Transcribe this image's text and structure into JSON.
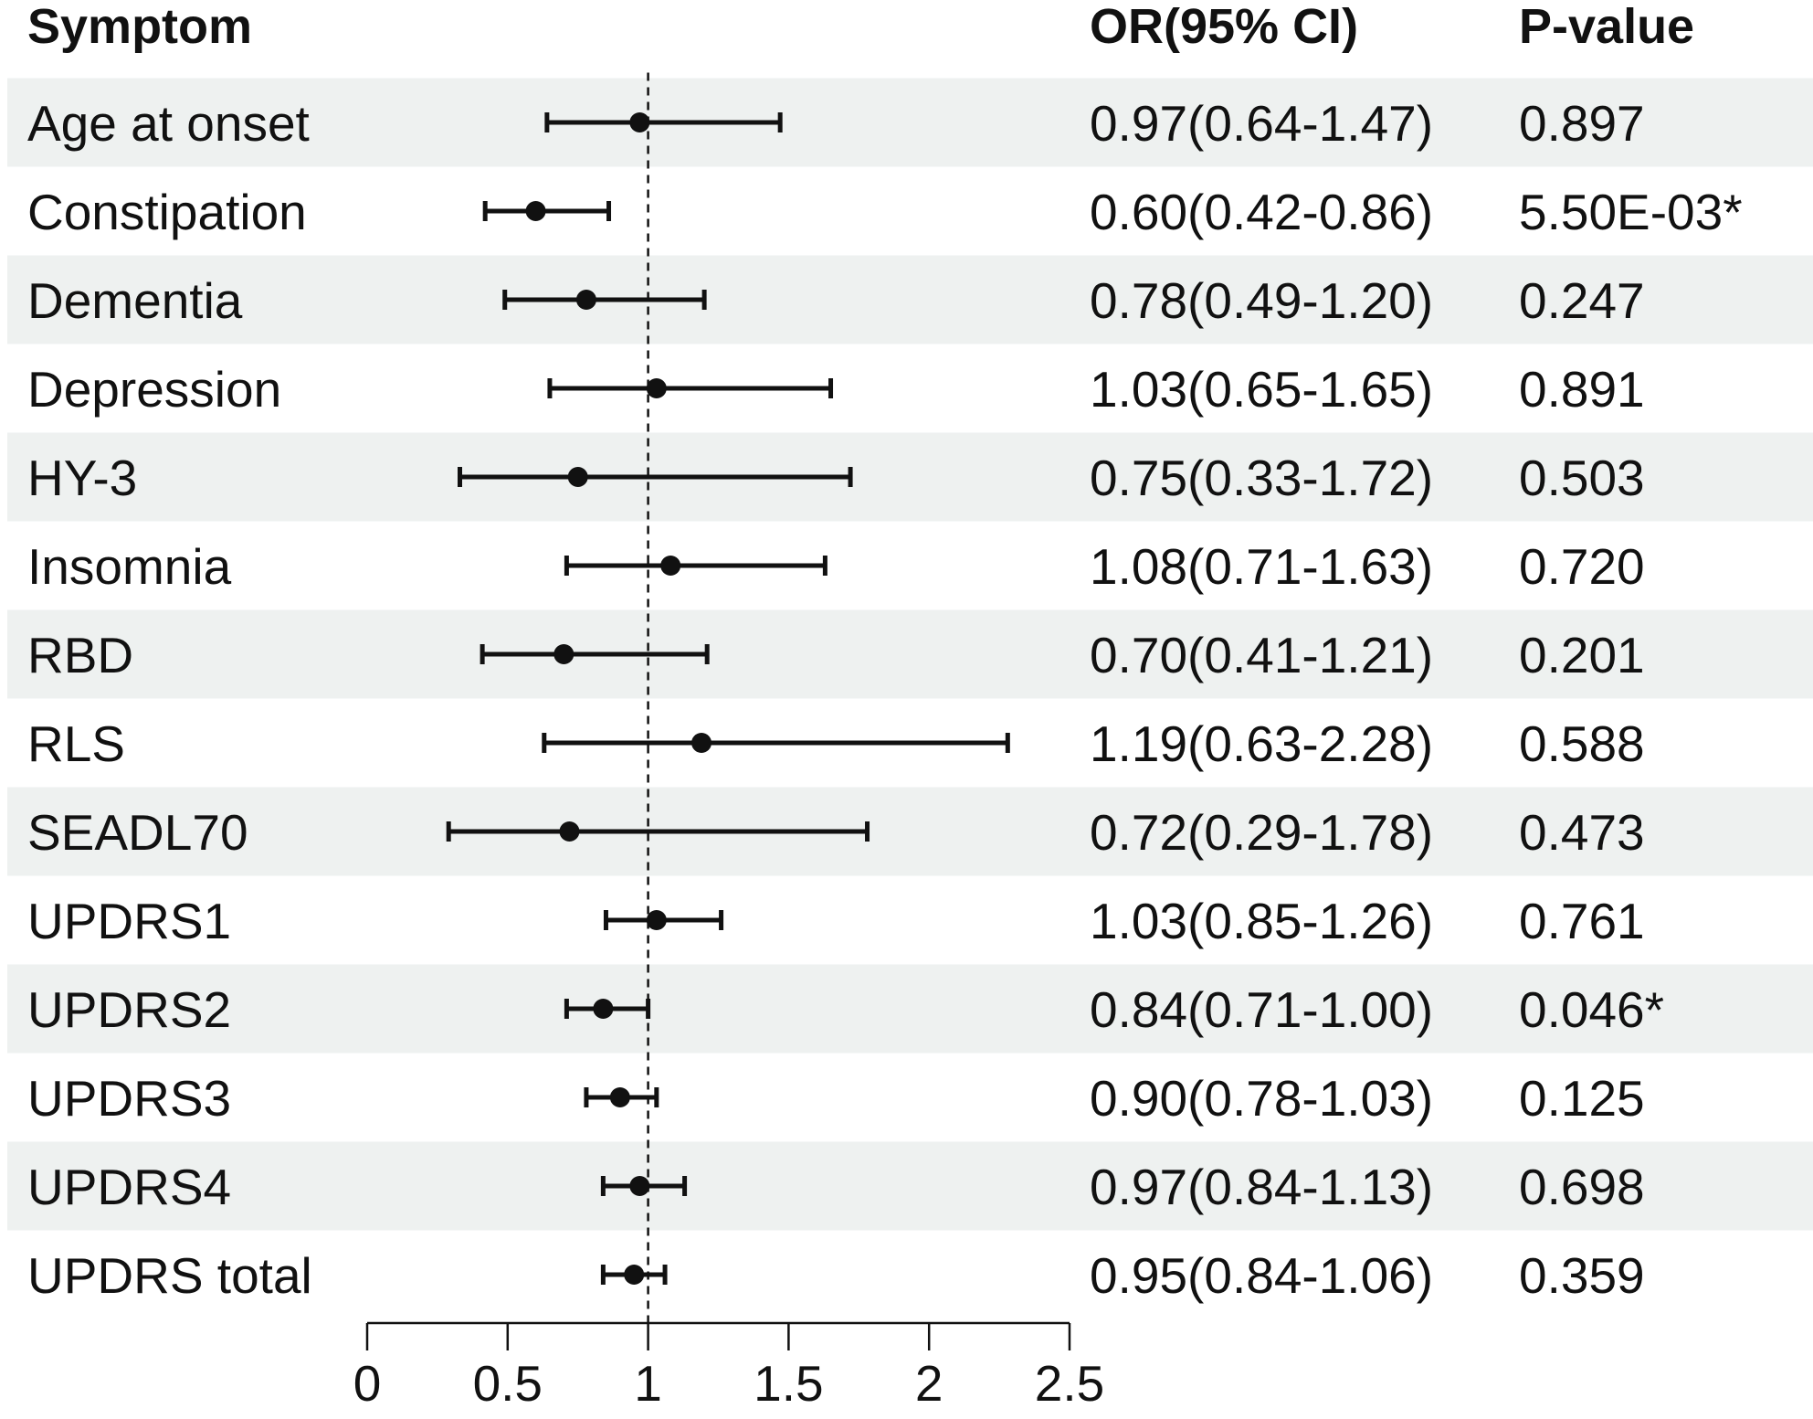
{
  "headers": {
    "symptom": "Symptom",
    "or_ci": "OR(95% CI)",
    "pvalue": "P-value"
  },
  "colors": {
    "stripe": "#eef1f0",
    "ink": "#111111"
  },
  "chart_data": {
    "type": "forest",
    "reference_line": 1,
    "reference_line_style": "dashed",
    "xlim": [
      0,
      2.5
    ],
    "xticks": [
      0,
      0.5,
      1,
      1.5,
      2,
      2.5
    ],
    "xtick_labels": [
      "0",
      "0.5",
      "1",
      "1.5",
      "2",
      "2.5"
    ],
    "rows": [
      {
        "label": "Age at onset",
        "or": 0.97,
        "lo": 0.64,
        "hi": 1.47,
        "or_ci": "0.97(0.64-1.47)",
        "p": "0.897"
      },
      {
        "label": "Constipation",
        "or": 0.6,
        "lo": 0.42,
        "hi": 0.86,
        "or_ci": "0.60(0.42-0.86)",
        "p": "5.50E-03*"
      },
      {
        "label": "Dementia",
        "or": 0.78,
        "lo": 0.49,
        "hi": 1.2,
        "or_ci": "0.78(0.49-1.20)",
        "p": "0.247"
      },
      {
        "label": "Depression",
        "or": 1.03,
        "lo": 0.65,
        "hi": 1.65,
        "or_ci": "1.03(0.65-1.65)",
        "p": "0.891"
      },
      {
        "label": "HY-3",
        "or": 0.75,
        "lo": 0.33,
        "hi": 1.72,
        "or_ci": "0.75(0.33-1.72)",
        "p": "0.503"
      },
      {
        "label": "Insomnia",
        "or": 1.08,
        "lo": 0.71,
        "hi": 1.63,
        "or_ci": "1.08(0.71-1.63)",
        "p": "0.720"
      },
      {
        "label": "RBD",
        "or": 0.7,
        "lo": 0.41,
        "hi": 1.21,
        "or_ci": "0.70(0.41-1.21)",
        "p": "0.201"
      },
      {
        "label": "RLS",
        "or": 1.19,
        "lo": 0.63,
        "hi": 2.28,
        "or_ci": "1.19(0.63-2.28)",
        "p": "0.588"
      },
      {
        "label": "SEADL70",
        "or": 0.72,
        "lo": 0.29,
        "hi": 1.78,
        "or_ci": "0.72(0.29-1.78)",
        "p": "0.473"
      },
      {
        "label": "UPDRS1",
        "or": 1.03,
        "lo": 0.85,
        "hi": 1.26,
        "or_ci": "1.03(0.85-1.26)",
        "p": "0.761"
      },
      {
        "label": "UPDRS2",
        "or": 0.84,
        "lo": 0.71,
        "hi": 1.0,
        "or_ci": "0.84(0.71-1.00)",
        "p": "0.046*"
      },
      {
        "label": "UPDRS3",
        "or": 0.9,
        "lo": 0.78,
        "hi": 1.03,
        "or_ci": "0.90(0.78-1.03)",
        "p": "0.125"
      },
      {
        "label": "UPDRS4",
        "or": 0.97,
        "lo": 0.84,
        "hi": 1.13,
        "or_ci": "0.97(0.84-1.13)",
        "p": "0.698"
      },
      {
        "label": "UPDRS total",
        "or": 0.95,
        "lo": 0.84,
        "hi": 1.06,
        "or_ci": "0.95(0.84-1.06)",
        "p": "0.359"
      }
    ]
  }
}
